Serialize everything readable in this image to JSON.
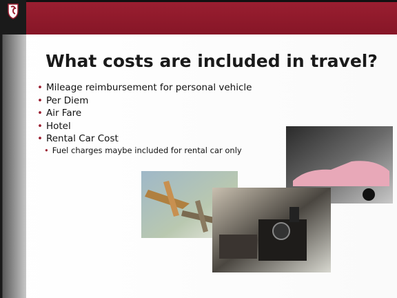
{
  "title": "What costs are included in travel?",
  "bullets": [
    {
      "text": "Mileage reimbursement for personal vehicle",
      "level": 1
    },
    {
      "text": "Per Diem",
      "level": 1
    },
    {
      "text": "Air Fare",
      "level": 1
    },
    {
      "text": "Hotel",
      "level": 1
    },
    {
      "text": "Rental Car Cost",
      "level": 1
    },
    {
      "text": "Fuel charges maybe included for rental car only",
      "level": 2
    }
  ]
}
